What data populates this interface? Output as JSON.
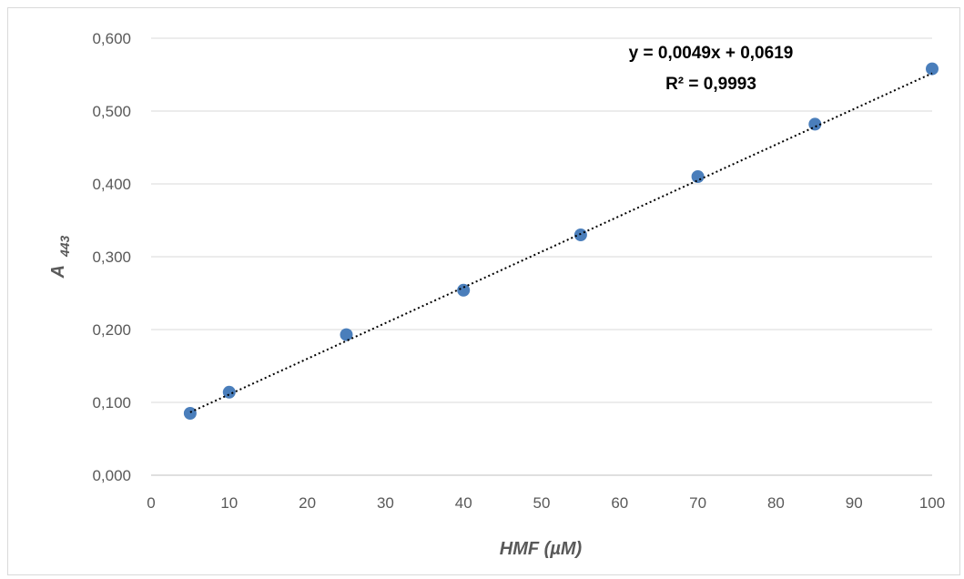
{
  "chart_data": {
    "type": "scatter",
    "title": "",
    "xlabel": "HMF (µM)",
    "ylabel": {
      "main": "A",
      "subscript": "443"
    },
    "xlim": [
      0,
      100
    ],
    "ylim": [
      0,
      0.6
    ],
    "xticks": [
      "0",
      "10",
      "20",
      "30",
      "40",
      "50",
      "60",
      "70",
      "80",
      "90",
      "100"
    ],
    "yticks": [
      "0,000",
      "0,100",
      "0,200",
      "0,300",
      "0,400",
      "0,500",
      "0,600"
    ],
    "grid": "horizontal",
    "legend": "none",
    "series": [
      {
        "x": [
          5,
          10,
          25,
          40,
          55,
          70,
          85,
          100
        ],
        "y": [
          0.085,
          0.114,
          0.193,
          0.254,
          0.33,
          0.41,
          0.482,
          0.558
        ],
        "color": "#4a7ebb"
      }
    ],
    "trendline": {
      "type": "linear",
      "slope": 0.0049,
      "intercept": 0.0619,
      "style": "dotted",
      "equation_text": "y = 0,0049x + 0,0619",
      "r2_text": "R² = 0,9993"
    }
  }
}
